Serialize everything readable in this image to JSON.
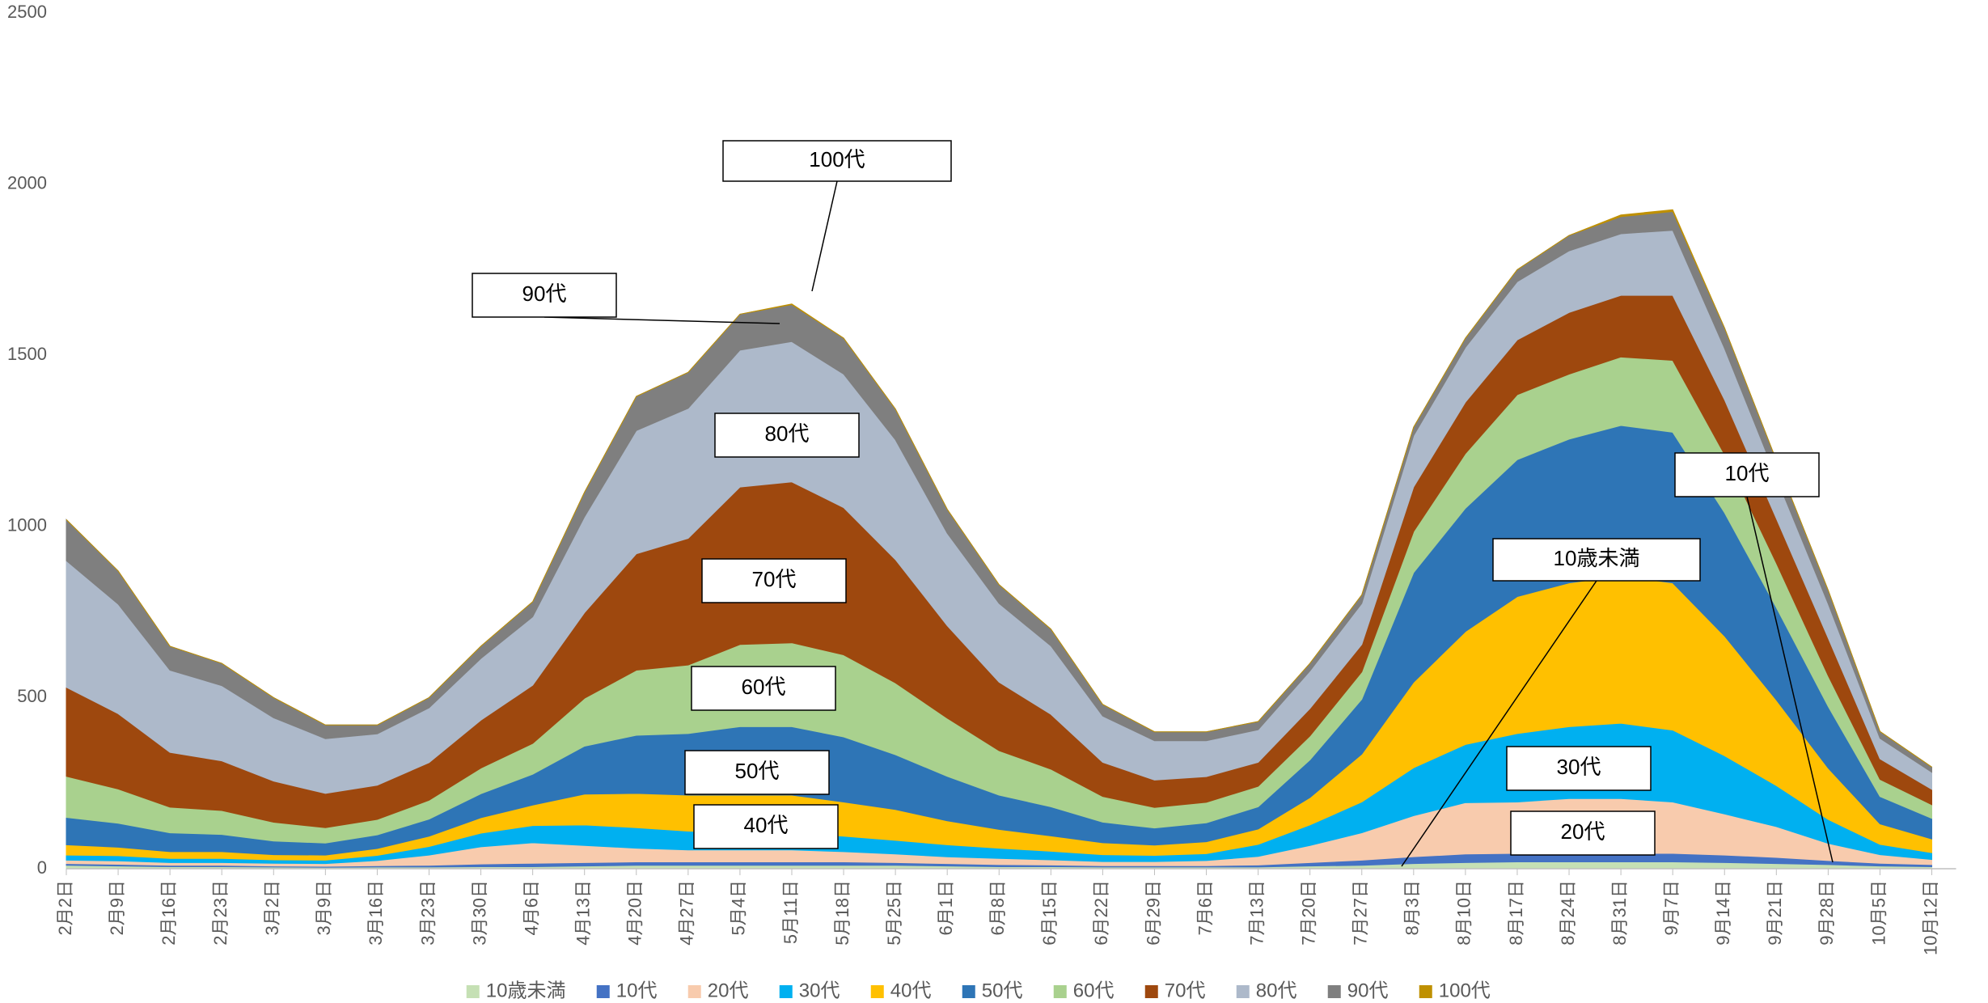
{
  "chart_data": {
    "type": "stacked_area",
    "categories": [
      "2月2日",
      "2月9日",
      "2月16日",
      "2月23日",
      "3月2日",
      "3月9日",
      "3月16日",
      "3月23日",
      "3月30日",
      "4月6日",
      "4月13日",
      "4月20日",
      "4月27日",
      "5月4日",
      "5月11日",
      "5月18日",
      "5月25日",
      "6月1日",
      "6月8日",
      "6月15日",
      "6月22日",
      "6月29日",
      "7月6日",
      "7月13日",
      "7月20日",
      "7月27日",
      "8月3日",
      "8月10日",
      "8月17日",
      "8月24日",
      "8月31日",
      "9月7日",
      "9月14日",
      "9月21日",
      "9月28日",
      "10月5日",
      "10月12日"
    ],
    "ylim": [
      0,
      2500
    ],
    "yticks": [
      0,
      500,
      1000,
      1500,
      2000,
      2500
    ],
    "grid": false,
    "legend": "bottom",
    "series": [
      {
        "name": "10歳未満",
        "color": "#c5e0b4",
        "values": [
          10,
          8,
          6,
          6,
          5,
          4,
          5,
          5,
          6,
          6,
          8,
          10,
          10,
          10,
          10,
          10,
          10,
          8,
          6,
          6,
          5,
          5,
          5,
          5,
          8,
          10,
          15,
          18,
          20,
          20,
          20,
          20,
          18,
          15,
          12,
          8,
          6
        ]
      },
      {
        "name": "10代",
        "color": "#4472c4",
        "values": [
          5,
          5,
          4,
          4,
          3,
          3,
          4,
          5,
          8,
          10,
          10,
          10,
          10,
          10,
          10,
          10,
          8,
          7,
          6,
          5,
          4,
          4,
          4,
          6,
          10,
          15,
          20,
          25,
          25,
          25,
          25,
          25,
          22,
          18,
          12,
          8,
          6
        ]
      },
      {
        "name": "20代",
        "color": "#f8cbad",
        "values": [
          10,
          10,
          8,
          8,
          8,
          8,
          15,
          30,
          50,
          60,
          50,
          40,
          35,
          35,
          35,
          30,
          25,
          20,
          18,
          15,
          12,
          12,
          15,
          25,
          50,
          80,
          120,
          150,
          150,
          160,
          160,
          150,
          120,
          90,
          50,
          25,
          15
        ]
      },
      {
        "name": "30代",
        "color": "#00b0f0",
        "values": [
          15,
          15,
          12,
          12,
          10,
          10,
          15,
          25,
          40,
          50,
          60,
          60,
          55,
          50,
          50,
          45,
          40,
          35,
          30,
          25,
          20,
          18,
          20,
          35,
          60,
          90,
          140,
          170,
          200,
          210,
          220,
          210,
          170,
          120,
          70,
          30,
          20
        ]
      },
      {
        "name": "40代",
        "color": "#ffc000",
        "values": [
          30,
          25,
          20,
          20,
          15,
          15,
          20,
          30,
          45,
          60,
          90,
          100,
          105,
          110,
          110,
          100,
          90,
          70,
          55,
          45,
          35,
          30,
          35,
          45,
          80,
          140,
          250,
          330,
          400,
          420,
          430,
          430,
          350,
          250,
          150,
          60,
          40
        ]
      },
      {
        "name": "50代",
        "color": "#2e75b6",
        "values": [
          80,
          70,
          55,
          50,
          40,
          35,
          40,
          50,
          70,
          90,
          140,
          170,
          180,
          200,
          200,
          190,
          160,
          130,
          100,
          85,
          60,
          50,
          55,
          65,
          110,
          160,
          320,
          360,
          400,
          420,
          440,
          440,
          360,
          270,
          180,
          80,
          60
        ]
      },
      {
        "name": "60代",
        "color": "#a9d18e",
        "values": [
          120,
          100,
          75,
          70,
          55,
          45,
          45,
          55,
          75,
          90,
          140,
          190,
          200,
          240,
          245,
          240,
          210,
          170,
          130,
          110,
          75,
          60,
          60,
          60,
          70,
          80,
          120,
          160,
          190,
          190,
          200,
          210,
          170,
          130,
          90,
          50,
          40
        ]
      },
      {
        "name": "70代",
        "color": "#9e480e",
        "values": [
          260,
          220,
          160,
          145,
          120,
          100,
          100,
          110,
          140,
          170,
          250,
          340,
          370,
          460,
          470,
          430,
          360,
          270,
          200,
          160,
          100,
          80,
          75,
          70,
          80,
          80,
          130,
          150,
          160,
          180,
          180,
          190,
          160,
          130,
          110,
          60,
          45
        ]
      },
      {
        "name": "80代",
        "color": "#adb9ca",
        "values": [
          370,
          320,
          240,
          220,
          185,
          160,
          150,
          160,
          180,
          200,
          280,
          360,
          380,
          400,
          410,
          390,
          350,
          270,
          230,
          200,
          135,
          115,
          105,
          95,
          110,
          120,
          150,
          160,
          170,
          180,
          180,
          190,
          150,
          120,
          100,
          60,
          50
        ]
      },
      {
        "name": "90代",
        "color": "#7f7f7f",
        "values": [
          120,
          97,
          70,
          65,
          59,
          40,
          26,
          30,
          36,
          44,
          72,
          100,
          105,
          105,
          108,
          105,
          90,
          70,
          55,
          49,
          34,
          26,
          26,
          24,
          22,
          25,
          25,
          27,
          35,
          45,
          50,
          55,
          60,
          50,
          40,
          20,
          15
        ]
      },
      {
        "name": "100代",
        "color": "#bf9000",
        "values": [
          0,
          0,
          0,
          0,
          0,
          0,
          0,
          0,
          0,
          0,
          0,
          0,
          0,
          0,
          2,
          0,
          0,
          0,
          0,
          0,
          0,
          0,
          0,
          0,
          0,
          0,
          0,
          0,
          0,
          0,
          5,
          5,
          0,
          0,
          0,
          0,
          0
        ]
      }
    ],
    "annotations": [
      "100代",
      "90代",
      "80代",
      "70代",
      "60代",
      "50代",
      "40代",
      "10代",
      "10歳未満",
      "30代",
      "20代"
    ]
  }
}
